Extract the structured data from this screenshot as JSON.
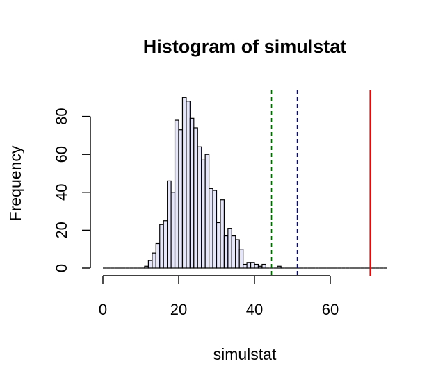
{
  "chart_data": {
    "type": "bar",
    "title": "Histogram of simulstat",
    "xlabel": "simulstat",
    "ylabel": "Frequency",
    "xlim": [
      0,
      75
    ],
    "ylim": [
      0,
      90
    ],
    "x_ticks": [
      0,
      20,
      40,
      60
    ],
    "y_ticks": [
      0,
      20,
      40,
      60,
      80
    ],
    "bin_width": 1,
    "bin_start": 0,
    "bin_end": 75,
    "values": [
      0,
      0,
      0,
      0,
      0,
      0,
      0,
      0,
      0,
      0,
      0,
      1,
      4,
      8,
      13,
      23,
      25,
      46,
      40,
      78,
      73,
      90,
      88,
      79,
      74,
      64,
      57,
      60,
      42,
      41,
      24,
      36,
      17,
      21,
      17,
      15,
      10,
      2,
      3,
      3,
      2,
      1,
      2,
      0,
      0,
      0,
      1,
      0,
      0,
      0,
      0,
      0,
      0,
      0,
      0,
      0,
      0,
      0,
      0,
      0,
      0,
      0,
      0,
      0,
      0,
      0,
      0,
      0,
      0,
      0,
      0,
      0,
      0,
      0,
      0
    ],
    "bar_fill": "#e6e6fa",
    "bar_stroke": "#000000",
    "grid": false,
    "reference_lines": [
      {
        "x": 44.5,
        "color": "#006400",
        "style": "dashed"
      },
      {
        "x": 51.3,
        "color": "#0000cd",
        "style": "dashed"
      },
      {
        "x": 70.5,
        "color": "#ff0000",
        "style": "solid"
      }
    ]
  }
}
